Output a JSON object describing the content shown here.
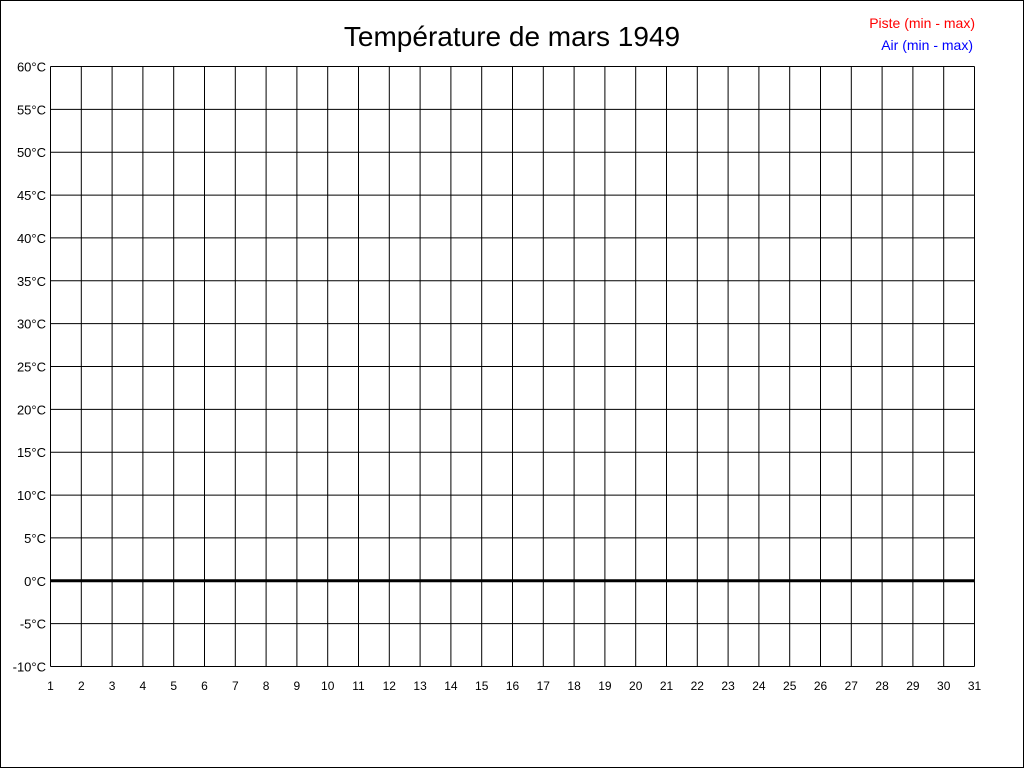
{
  "chart_data": {
    "type": "line",
    "title": "Température de mars 1949",
    "xlabel": "",
    "ylabel": "",
    "x_ticks": [
      1,
      2,
      3,
      4,
      5,
      6,
      7,
      8,
      9,
      10,
      11,
      12,
      13,
      14,
      15,
      16,
      17,
      18,
      19,
      20,
      21,
      22,
      23,
      24,
      25,
      26,
      27,
      28,
      29,
      30,
      31
    ],
    "xlim": [
      1,
      31
    ],
    "ylim": [
      -10,
      60
    ],
    "y_step": 5,
    "y_unit": "°C",
    "grid": true,
    "legend_position": "top-right",
    "series": [
      {
        "name": "Piste (min - max)",
        "color": "#ff0000",
        "values": []
      },
      {
        "name": "Air (min - max)",
        "color": "#0000ff",
        "values": []
      }
    ]
  }
}
